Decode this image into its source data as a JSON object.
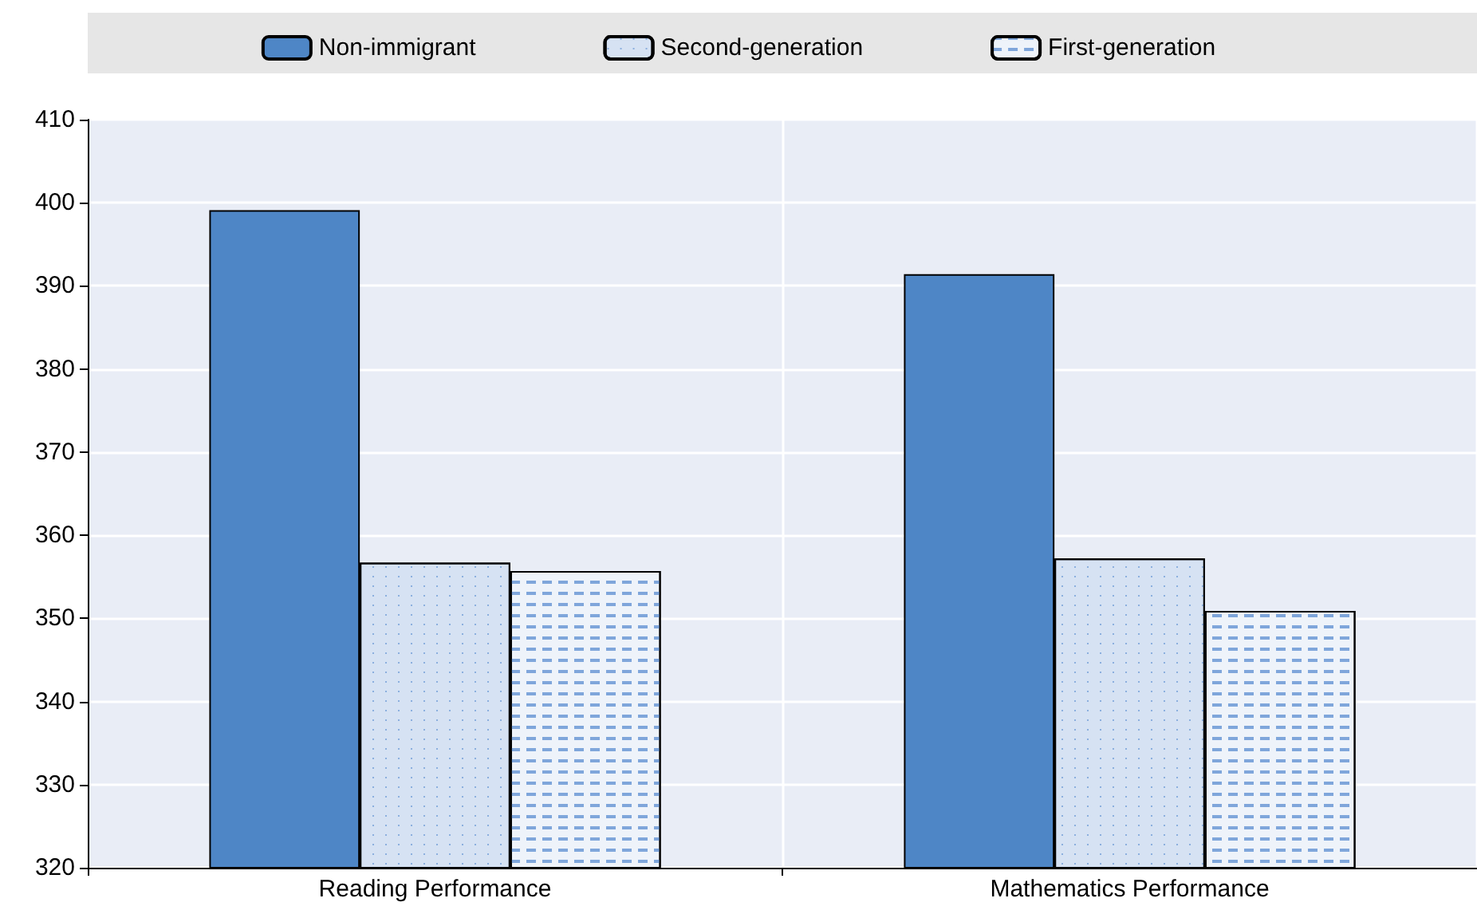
{
  "chart_data": {
    "type": "bar",
    "categories": [
      "Reading Performance",
      "Mathematics Performance"
    ],
    "series": [
      {
        "name": "Non-immigrant",
        "color": "#4e86c6",
        "values": [
          399.1,
          391.4
        ]
      },
      {
        "name": "Second-generation",
        "color": "#d6e2f3",
        "values": [
          356.7,
          357.2
        ]
      },
      {
        "name": "First-generation",
        "color": "#eef3fa",
        "values": [
          355.7,
          350.9
        ]
      }
    ],
    "ylim": [
      320,
      410
    ],
    "yticks": [
      320,
      330,
      340,
      350,
      360,
      370,
      380,
      390,
      400,
      410
    ],
    "grid": true,
    "legend": "top"
  }
}
